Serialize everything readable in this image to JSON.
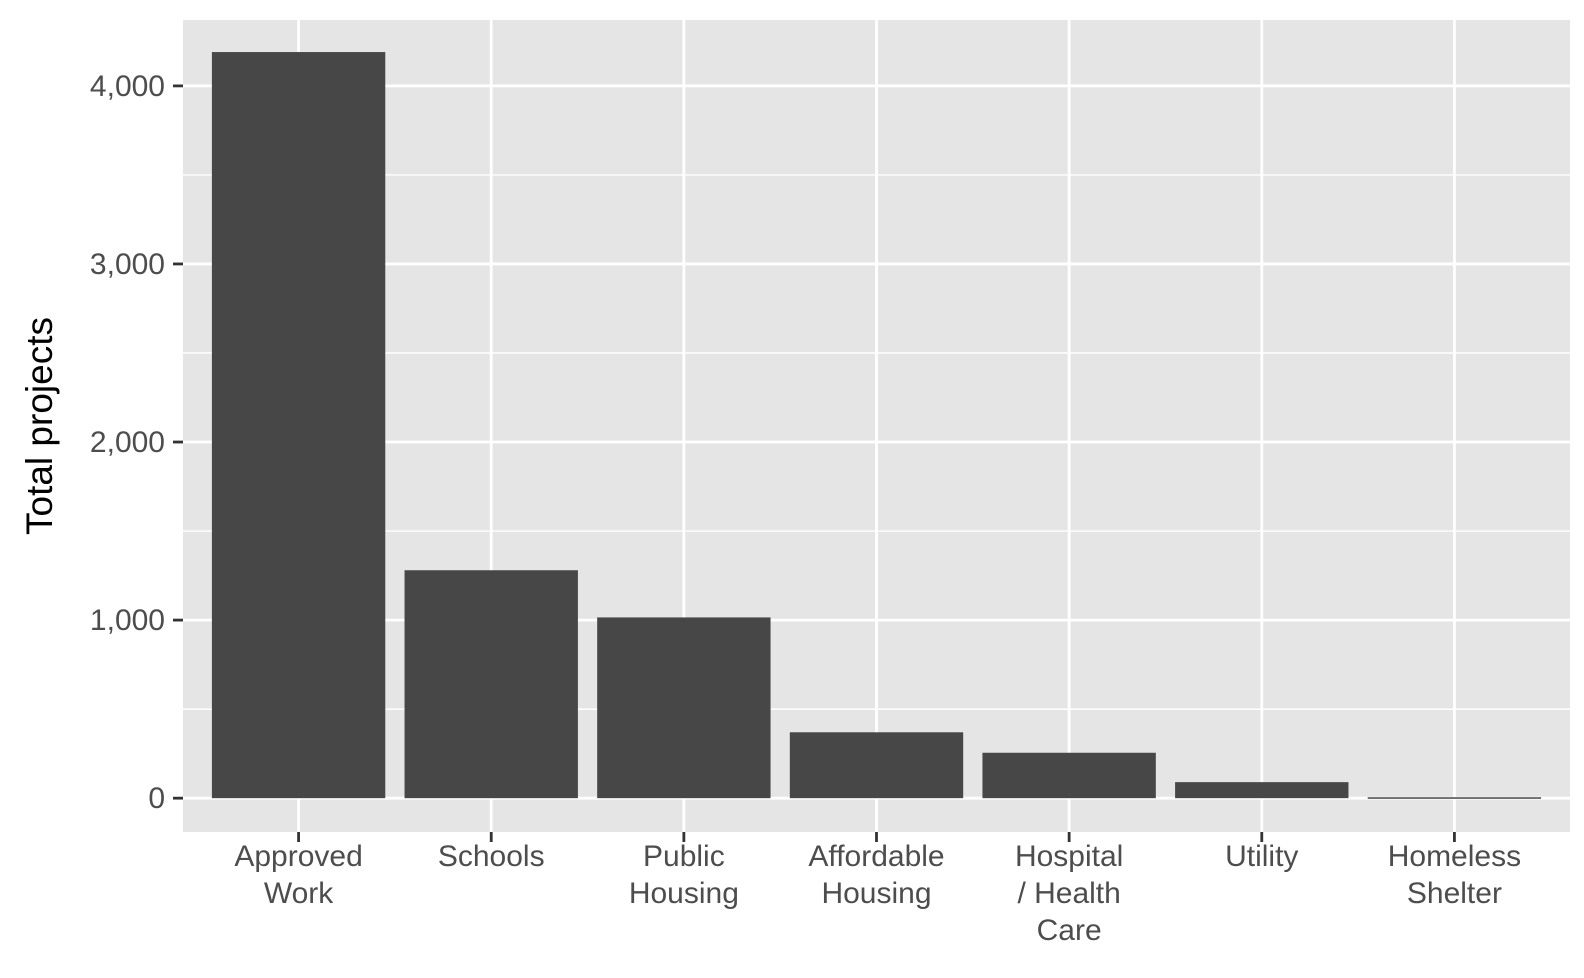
{
  "chart_data": {
    "type": "bar",
    "title": "",
    "xlabel": "",
    "ylabel": "Total projects",
    "categories": [
      [
        "Approved",
        "Work"
      ],
      [
        "Schools"
      ],
      [
        "Public",
        "Housing"
      ],
      [
        "Affordable",
        "Housing"
      ],
      [
        "Hospital",
        "/ Health",
        "Care"
      ],
      [
        "Utility"
      ],
      [
        "Homeless",
        "Shelter"
      ]
    ],
    "values": [
      4190,
      1280,
      1015,
      370,
      255,
      90,
      5
    ],
    "ylim": [
      -190,
      4370
    ],
    "yticks": [
      0,
      1000,
      2000,
      3000,
      4000
    ],
    "ytick_labels": [
      "0",
      "1,000",
      "2,000",
      "3,000",
      "4,000"
    ],
    "grid": true,
    "legend": "none",
    "colors": {
      "bar": "#474747",
      "panel": "#e5e5e5",
      "grid": "#ffffff",
      "tick": "#333333",
      "tick_label": "#4d4d4d"
    }
  }
}
